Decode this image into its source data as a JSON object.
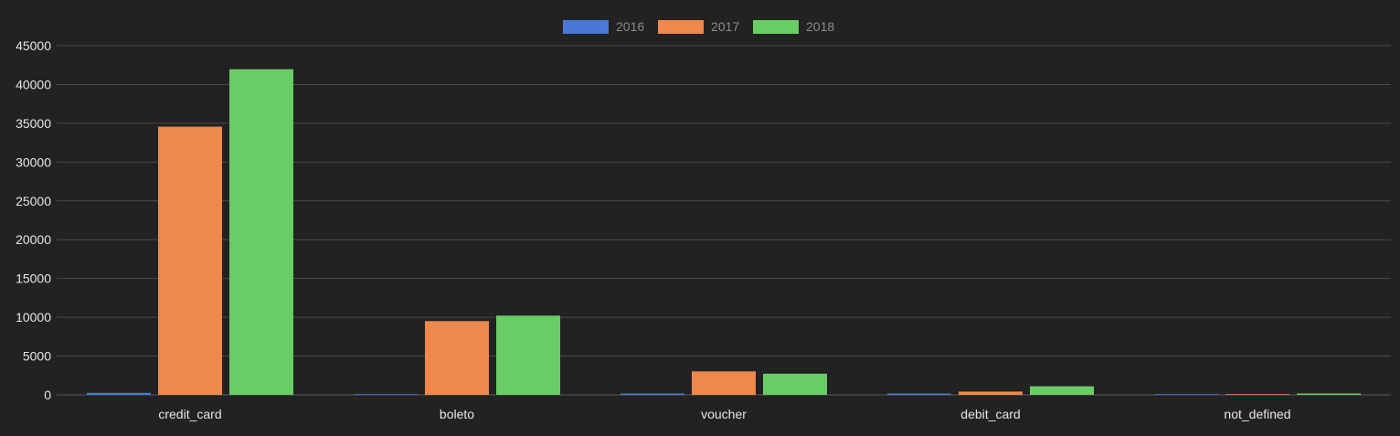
{
  "chart_data": {
    "type": "bar",
    "categories": [
      "credit_card",
      "boleto",
      "voucher",
      "debit_card",
      "not_defined"
    ],
    "series": [
      {
        "name": "2016",
        "color": "#4a78d4",
        "values": [
          258,
          0,
          50,
          50,
          0
        ]
      },
      {
        "name": "2017",
        "color": "#ef884c",
        "values": [
          34568,
          9508,
          3027,
          422,
          0
        ]
      },
      {
        "name": "2018",
        "color": "#69cc65",
        "values": [
          41969,
          10213,
          2725,
          1105,
          3
        ]
      }
    ],
    "ylim": [
      0,
      45000
    ],
    "y_ticks": [
      "0",
      "5000",
      "10000",
      "15000",
      "20000",
      "25000",
      "30000",
      "35000",
      "40000",
      "45000"
    ],
    "grid": true,
    "legend_position": "top-center",
    "title": "",
    "xlabel": "",
    "ylabel": ""
  }
}
